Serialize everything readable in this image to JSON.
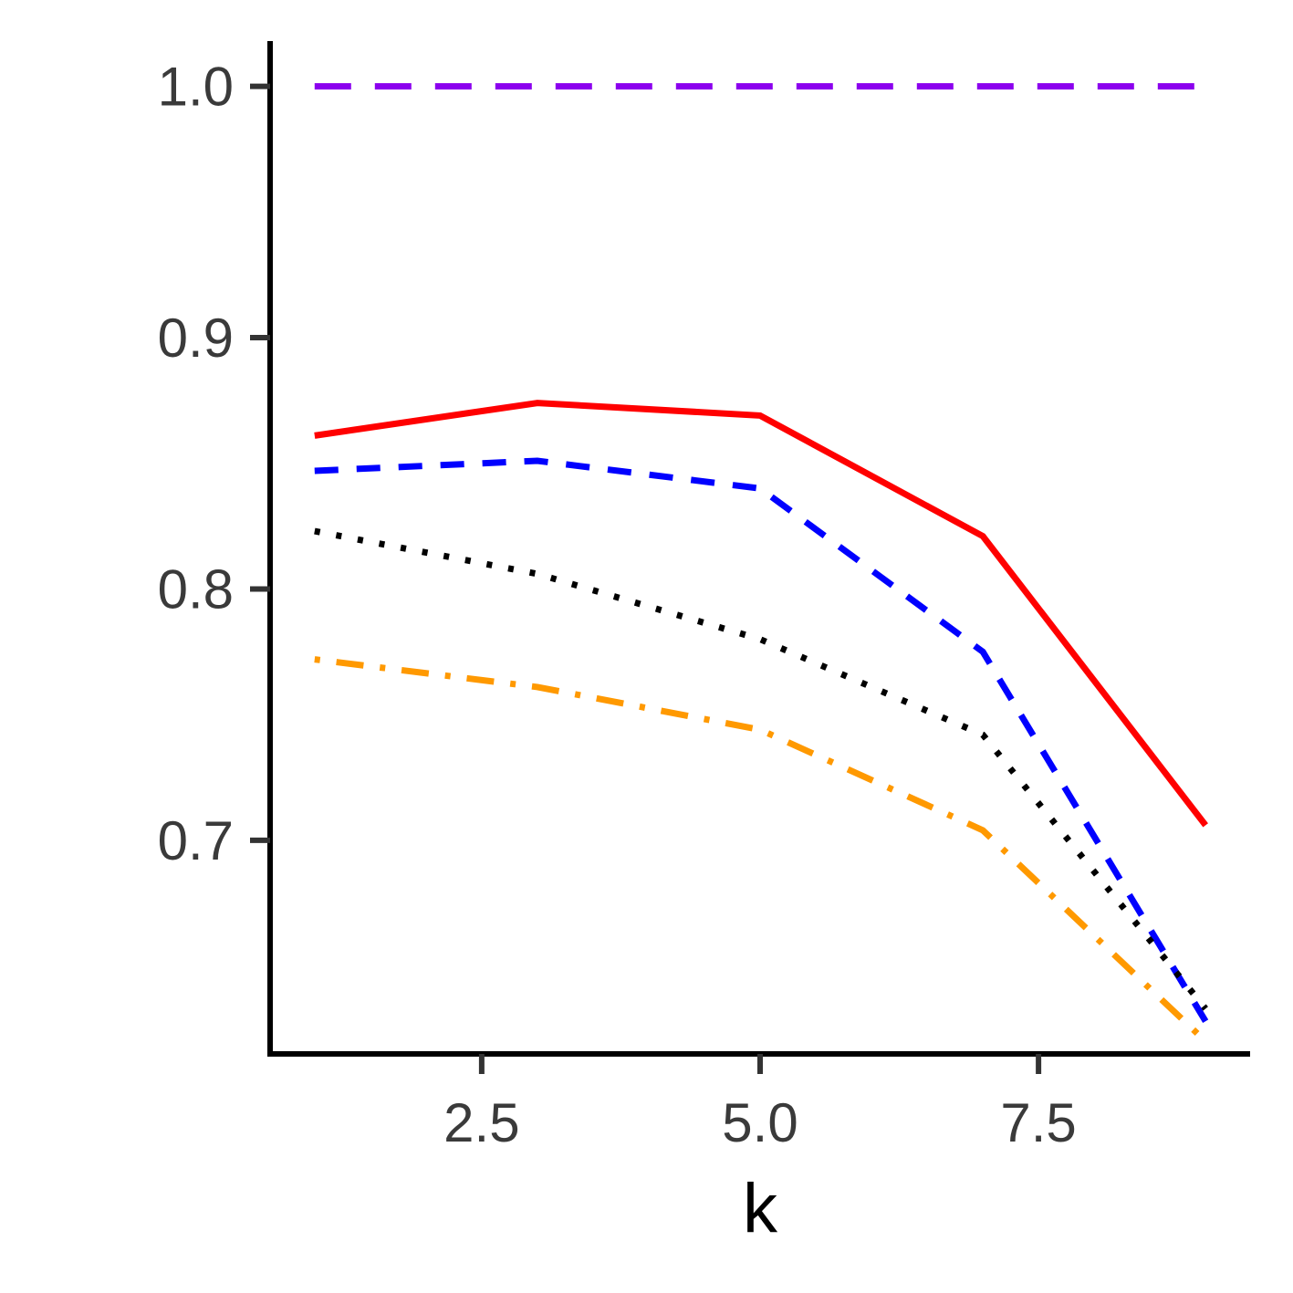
{
  "chart_data": {
    "type": "line",
    "title": "",
    "xlabel": "k",
    "ylabel": "",
    "x": [
      1,
      3,
      5,
      7,
      9
    ],
    "xlim": [
      0.6,
      9.4
    ],
    "ylim": [
      0.615,
      1.018
    ],
    "xticks": [
      2.5,
      5.0,
      7.5
    ],
    "xtick_labels": [
      "2.5",
      "5.0",
      "7.5"
    ],
    "yticks": [
      0.7,
      0.8,
      0.9,
      1.0
    ],
    "ytick_labels": [
      "0.7",
      "0.8",
      "0.9",
      "1.0"
    ],
    "grid": false,
    "legend": "none",
    "series": [
      {
        "color": "#8B00EE",
        "dash": "long-dash",
        "values": [
          1.0,
          1.0,
          1.0,
          1.0,
          1.0
        ]
      },
      {
        "color": "#FF0000",
        "dash": "solid",
        "values": [
          0.861,
          0.874,
          0.869,
          0.821,
          0.706
        ]
      },
      {
        "color": "#0000FF",
        "dash": "dashed",
        "values": [
          0.847,
          0.851,
          0.84,
          0.775,
          0.628
        ]
      },
      {
        "color": "#000000",
        "dash": "dotted",
        "values": [
          0.823,
          0.806,
          0.78,
          0.742,
          0.633
        ]
      },
      {
        "color": "#FF9900",
        "dash": "dot-dash",
        "values": [
          0.772,
          0.761,
          0.744,
          0.704,
          0.62
        ]
      }
    ]
  }
}
